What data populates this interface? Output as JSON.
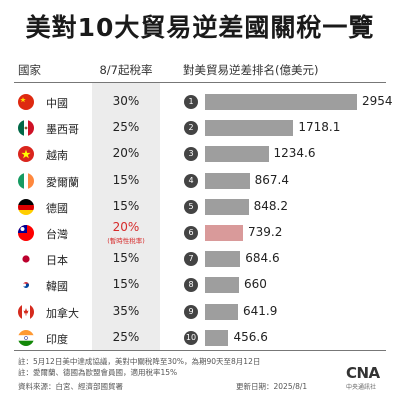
{
  "title": "美對10大貿易逆差國關稅一覽",
  "headers": {
    "country": "國家",
    "tariff": "8/7起稅率",
    "deficit": "對美貿易逆差排名(億美元)"
  },
  "tariff_note": "(暫時性稅率)",
  "colors": {
    "bar": "#9e9e9e",
    "highlight_bar": "#d99a9a",
    "highlight_text": "#d62b2b"
  },
  "chart_data": {
    "type": "bar",
    "orientation": "horizontal",
    "title": "美對10大貿易逆差國關稅一覽",
    "ylabel": "對美貿易逆差排名(億美元)",
    "categories": [
      "中國",
      "墨西哥",
      "越南",
      "愛爾蘭",
      "德國",
      "台灣",
      "日本",
      "韓國",
      "加拿大",
      "印度"
    ],
    "ranks": [
      "1",
      "2",
      "3",
      "4",
      "5",
      "6",
      "7",
      "8",
      "9",
      "10"
    ],
    "values": [
      2954,
      1718.1,
      1234.6,
      867.4,
      848.2,
      739.2,
      684.6,
      660,
      641.9,
      456.6
    ],
    "value_labels": [
      "2954",
      "1718.1",
      "1234.6",
      "867.4",
      "848.2",
      "739.2",
      "684.6",
      "660",
      "641.9",
      "456.6"
    ],
    "tariffs": [
      "30%",
      "25%",
      "20%",
      "15%",
      "15%",
      "20%",
      "15%",
      "15%",
      "35%",
      "25%"
    ],
    "highlight_index": 5,
    "xlim": [
      0,
      2954
    ]
  },
  "flags": [
    "china-flag",
    "mexico-flag",
    "vietnam-flag",
    "ireland-flag",
    "germany-flag",
    "taiwan-flag",
    "japan-flag",
    "korea-flag",
    "canada-flag",
    "india-flag"
  ],
  "notes": [
    "註：5月12日美中達成協議，美對中關稅降至30%，為期90天至8月12日",
    "註：愛爾蘭、德國為歐盟會員國，適用稅率15%"
  ],
  "source": "資料來源：白宮、經濟部國貿署",
  "updated": "更新日期：2025/8/1",
  "logo": {
    "name": "CNA",
    "sub": "中央通訊社"
  }
}
